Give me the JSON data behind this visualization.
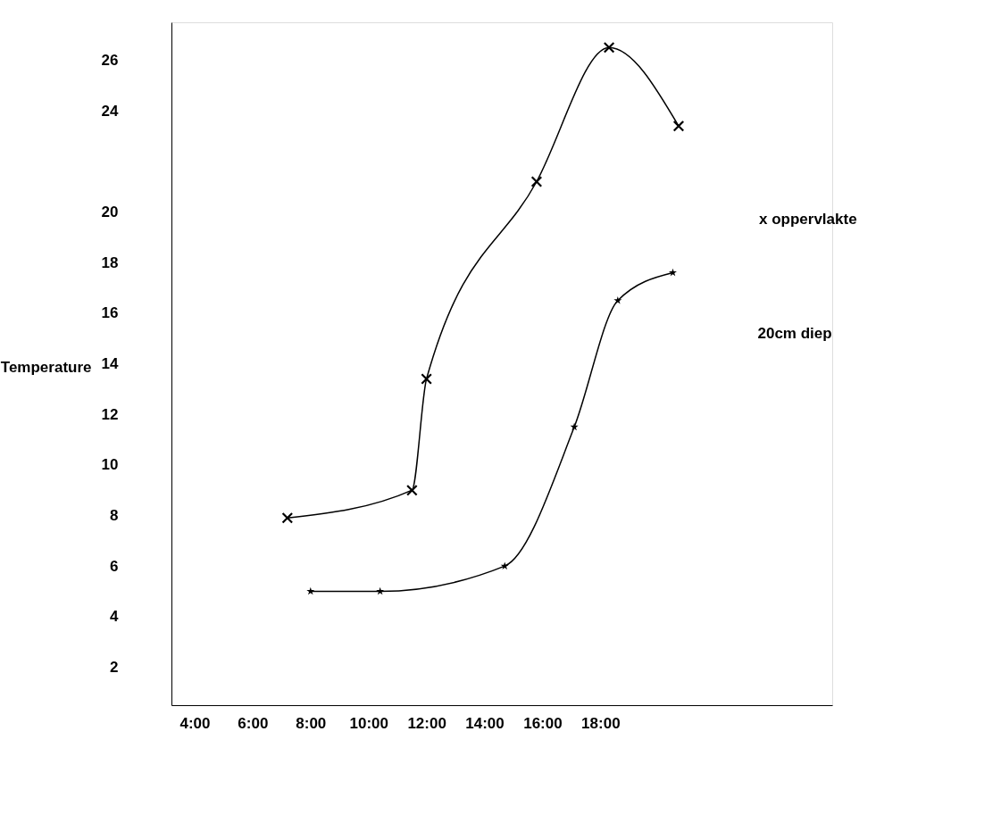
{
  "chart_data": {
    "type": "line",
    "ylabel": "Temperature",
    "xlim": [
      3.2,
      26
    ],
    "xticks": [
      {
        "value": 4,
        "label": "4:00"
      },
      {
        "value": 6,
        "label": "6:00"
      },
      {
        "value": 8,
        "label": "8:00"
      },
      {
        "value": 10,
        "label": "10:00"
      },
      {
        "value": 12,
        "label": "12:00"
      },
      {
        "value": 14,
        "label": "14:00"
      },
      {
        "value": 16,
        "label": "16:00"
      },
      {
        "value": 18,
        "label": "18:00"
      }
    ],
    "ylim": [
      0.5,
      27.5
    ],
    "yticks": [
      2,
      4,
      6,
      8,
      10,
      12,
      14,
      16,
      18,
      20,
      24,
      26
    ],
    "grid": false,
    "line_style": "solid",
    "series": [
      {
        "name": "x oppervlakte",
        "color": "#000000",
        "marker": "cross",
        "x": [
          7.2,
          11.5,
          12.0,
          15.8,
          18.3,
          20.7
        ],
        "values": [
          7.9,
          9.0,
          13.4,
          21.2,
          26.5,
          23.4
        ]
      },
      {
        "name": "20cm diep",
        "color": "#000000",
        "marker": "star",
        "x": [
          8.0,
          10.4,
          14.7,
          17.1,
          18.6,
          20.5
        ],
        "values": [
          5.0,
          5.0,
          6.0,
          11.5,
          16.5,
          17.6
        ]
      }
    ]
  }
}
